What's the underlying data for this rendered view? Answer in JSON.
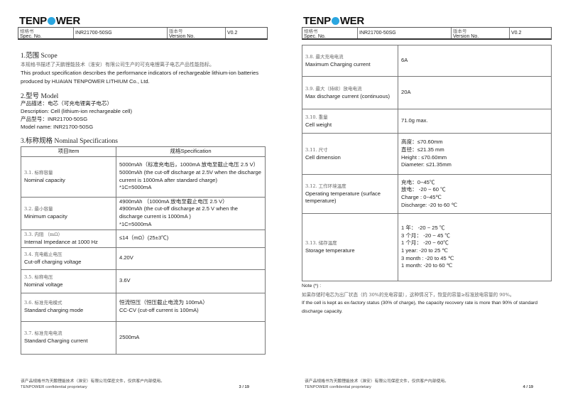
{
  "header": {
    "logo": "TENPOWER",
    "spec_label_cn": "规格书",
    "spec_label": "Spec. No.",
    "spec_no": "INR21700-50SG",
    "version_label_cn": "版本号",
    "version_label": "Version No.",
    "version": "V0.2"
  },
  "footer": {
    "cn": "该产品规格书为天鹏锂能技术（淮安）有限公司保密文件，仅供客户内部使用。",
    "en": "TENPOWER confidential proprietary"
  },
  "page3": {
    "page_number": "3 / 19",
    "scope": {
      "heading": "1.范围 Scope",
      "cn": "本规格书描述了天鹏锂能技术（淮安）有限公司生产的可充电锂离子电芯产品性能指标。",
      "en": "This product specification describes the performance indicators of rechargeable lithium-ion batteries produced by HUAIAN TENPOWER LITHIUM Co., Ltd."
    },
    "model": {
      "heading": "2.型号 Model",
      "lines": [
        "产品描述：电芯（可充电锂离子电芯）",
        "Description: Cell (lithium-ion rechargeable cell)",
        "产品型号：INR21700-50SG",
        "Model name: INR21700-50SG"
      ]
    },
    "specs": {
      "heading": "3.标称规格 Nominal Specifications",
      "col_item": "项目Item",
      "col_spec": "规格Specification",
      "rows": [
        {
          "item_cn": "3.1. 标称容量",
          "item_en": "Nominal capacity",
          "spec": [
            "5000mAh（标准充电后，1000mA 放电至截止电压 2.5 V）",
            "5000mAh (the cut-off discharge at 2.5V when the discharge current is 1000mA after standard charge)",
            "*1C=5000mA"
          ]
        },
        {
          "item_cn": "3.2. 最小容量",
          "item_en": "Minimum capacity",
          "spec": [
            "4900mAh （1000mA 放电至截止电压 2.5 V）",
            "4900mAh (the cut-off discharge at 2.5 V when the discharge current is 1000mA )",
            "*1C=5000mA"
          ]
        },
        {
          "item_cn": "3.3. 内阻 （mΩ）",
          "item_en": "Internal Impedance at 1000 Hz",
          "spec": [
            "≤14（mΩ）(25±3℃)"
          ]
        },
        {
          "item_cn": "3.4. 充电截止电压",
          "item_en": "Cut-off charging voltage",
          "spec": [
            "4.20V"
          ]
        },
        {
          "item_cn": "3.5. 标称电压",
          "item_en": "Nominal voltage",
          "spec": [
            "3.6V"
          ]
        },
        {
          "item_cn": "3.6. 标准充电模式",
          "item_en": "Standard charging mode",
          "spec": [
            "恒流恒压（恒压截止电流为 100mA）",
            "CC-CV (cut-off current is 100mA)"
          ]
        },
        {
          "item_cn": "3.7. 标准充电电流",
          "item_en": "Standard Charging current",
          "spec": [
            "2500mA"
          ]
        }
      ]
    }
  },
  "page4": {
    "page_number": "4 / 19",
    "rows": [
      {
        "item_cn": "3.8. 最大充电电流",
        "item_en": "Maximum Charging current",
        "spec": [
          "6A"
        ]
      },
      {
        "item_cn": "3.9. 最大（持续）放电电流",
        "item_en": "Max discharge current (continuous)",
        "spec": [
          "20A"
        ]
      },
      {
        "item_cn": "3.10. 重量",
        "item_en": "Cell weight",
        "spec": [
          "71.0g max."
        ]
      },
      {
        "item_cn": "3.11. 尺寸",
        "item_en": "Cell dimension",
        "spec": [
          "高度：≤70.60mm",
          "直径：≤21.35 mm",
          "Height : ≤70.60mm",
          "Diameter: ≤21.35mm"
        ]
      },
      {
        "item_cn": "3.12. 工作环境温度",
        "item_en": "Operating temperature (surface temperature)",
        "spec": [
          "充电：0~45℃",
          "放电： -20 ~ 60 ℃",
          "Charge : 0~45℃",
          "Discharge:   -20 to 60 ℃"
        ]
      },
      {
        "item_cn": "3.13. 储存温度",
        "item_en": "Storage temperature",
        "spec": [
          "1 年： -20 ~ 25 ℃",
          "3 个月： -20 ~ 45 ℃",
          "1 个月： -20 ~ 60℃",
          "1 year:     -20 to 25 ℃",
          "3 month :   -20 to 45 ℃",
          "1 month:   -20 to 60 ℃"
        ]
      }
    ],
    "note": {
      "title": "Note (*) :",
      "cn": "如果存储时电芯为出厂状态（约 30%的充电容量），这种情况下，恢复的容量≥标准放电容量的 90%。",
      "en": "If the cell is kept as ex-factory status (30% of charge), the capacity recovery rate is more than 90% of standard discharge capacity."
    }
  }
}
